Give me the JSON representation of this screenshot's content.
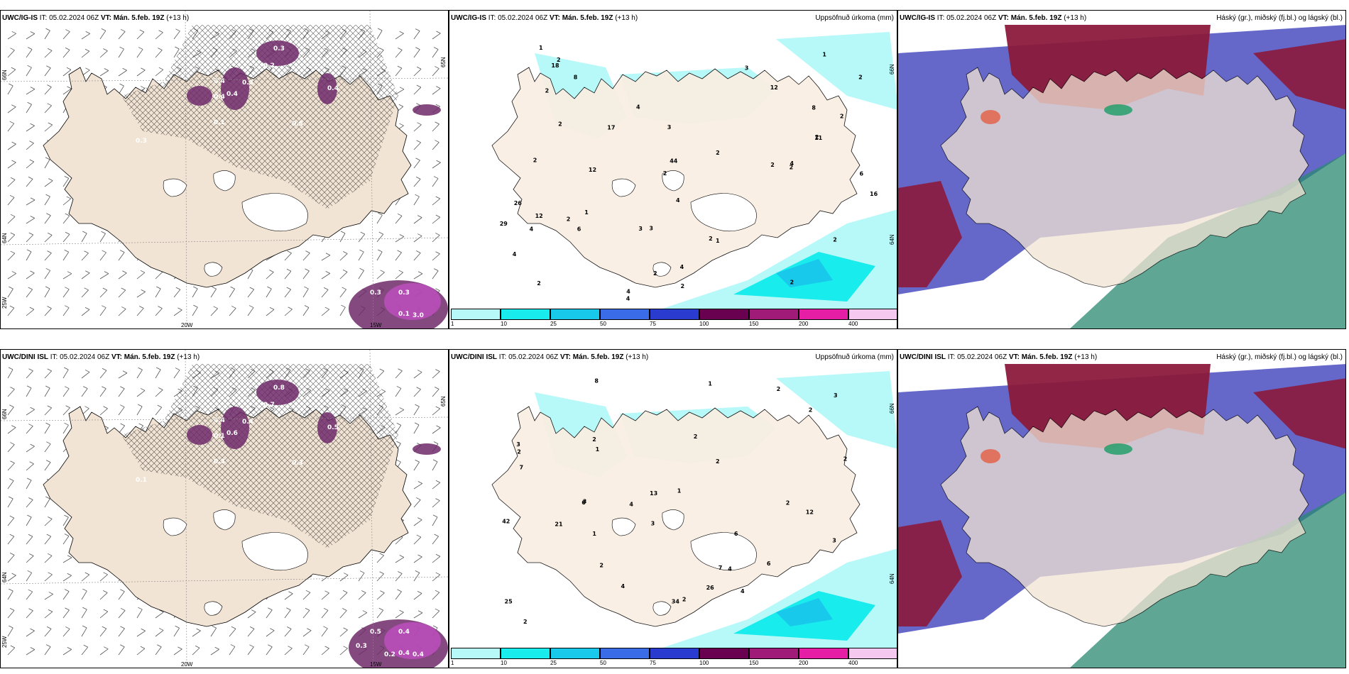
{
  "panels": [
    {
      "id": "p1",
      "model": "UWC/IG-IS",
      "it_label": "IT:",
      "it_value": "05.02.2024 06Z",
      "vt_label": "VT:",
      "vt_value": "Mán. 5.feb. 19Z",
      "lead": "(+13 h)",
      "right_title": "",
      "kind": "wind-precip",
      "lat_labels": [
        "66N",
        "64N",
        "25W"
      ],
      "lon_labels": [
        "20W",
        "15W",
        "65N"
      ],
      "values": [
        "0.3",
        "0.2",
        "0.4",
        "0.3",
        "0.4",
        "0.5",
        "0.4",
        "0.1",
        "0.3",
        "0.3",
        "0.4",
        "0.1",
        "0.3",
        "3.0"
      ]
    },
    {
      "id": "p2",
      "model": "UWC/IG-IS",
      "it_label": "IT:",
      "it_value": "05.02.2024 06Z",
      "vt_label": "VT:",
      "vt_value": "Mán. 5.feb. 19Z",
      "lead": "(+13 h)",
      "right_title": "Uppsöfnuð úrkoma (mm)",
      "kind": "precip",
      "lat_labels": [
        "66N",
        "64N"
      ],
      "values": [
        "2",
        "2",
        "4",
        "4",
        "4",
        "4",
        "2",
        "2",
        "3",
        "6",
        "6",
        "8",
        "4",
        "2",
        "2",
        "2",
        "1",
        "3",
        "2",
        "2",
        "2",
        "2",
        "1",
        "2",
        "3",
        "2",
        "2",
        "2",
        "1",
        "8",
        "2",
        "2",
        "4",
        "12",
        "12",
        "17",
        "18",
        "26",
        "29",
        "44",
        "3",
        "11",
        "16",
        "12",
        "4",
        "4",
        "2",
        "1"
      ],
      "colorbar": {
        "labels": [
          "1",
          "10",
          "25",
          "50",
          "75",
          "100",
          "150",
          "200",
          "400"
        ],
        "colors": [
          "#b7f8f8",
          "#18ecec",
          "#18c9ec",
          "#3a6ce8",
          "#2a3cd0",
          "#6a0050",
          "#a01a78",
          "#e61ea6",
          "#f5c8f0"
        ]
      }
    },
    {
      "id": "p3",
      "model": "UWC/IG-IS",
      "it_label": "IT:",
      "it_value": "05.02.2024 06Z",
      "vt_label": "VT:",
      "vt_value": "Mán. 5.feb. 19Z",
      "lead": "(+13 h)",
      "right_title": "Háský (gr.), miðský (fj.bl.) og lágský (bl.)",
      "kind": "clouds"
    },
    {
      "id": "p4",
      "model": "UWC/DINI ISL",
      "it_label": "IT:",
      "it_value": "05.02.2024 06Z",
      "vt_label": "VT:",
      "vt_value": "Mán. 5.feb. 19Z",
      "lead": "(+13 h)",
      "right_title": "",
      "kind": "wind-precip",
      "lat_labels": [
        "66N",
        "64N",
        "25W"
      ],
      "lon_labels": [
        "20W",
        "15W",
        "65N"
      ],
      "values": [
        "0.8",
        "0.7",
        "0.4",
        "0.4",
        "0.6",
        "0.3",
        "0.5",
        "0.4",
        "0.5",
        "0.4",
        "0.1",
        "0.3",
        "0.1",
        "0.4",
        "0.2",
        "0.3"
      ]
    },
    {
      "id": "p5",
      "model": "UWC/DINI ISL",
      "it_label": "IT:",
      "it_value": "05.02.2024 06Z",
      "vt_label": "VT:",
      "vt_value": "Mán. 5.feb. 19Z",
      "lead": "(+13 h)",
      "right_title": "Uppsöfnuð úrkoma (mm)",
      "kind": "precip",
      "lat_labels": [
        "66N",
        "64N"
      ],
      "values": [
        "1",
        "1",
        "4",
        "7",
        "4",
        "6",
        "2",
        "3",
        "6",
        "4",
        "3",
        "3",
        "2",
        "2",
        "2",
        "2",
        "2",
        "2",
        "2",
        "1",
        "2",
        "3",
        "2",
        "4",
        "7",
        "26",
        "25",
        "34",
        "42",
        "21",
        "13",
        "12",
        "3",
        "6",
        "8",
        "2",
        "1"
      ],
      "colorbar": {
        "labels": [
          "1",
          "10",
          "25",
          "50",
          "75",
          "100",
          "150",
          "200",
          "400"
        ],
        "colors": [
          "#b7f8f8",
          "#18ecec",
          "#18c9ec",
          "#3a6ce8",
          "#2a3cd0",
          "#6a0050",
          "#a01a78",
          "#e61ea6",
          "#f5c8f0"
        ]
      }
    },
    {
      "id": "p6",
      "model": "UWC/DINI ISL",
      "it_label": "IT:",
      "it_value": "05.02.2024 06Z",
      "vt_label": "VT:",
      "vt_value": "Mán. 5.feb. 19Z",
      "lead": "(+13 h)",
      "right_title": "Háský (gr.), miðský (fj.bl.) og lágský (bl.)",
      "kind": "clouds"
    }
  ],
  "colors": {
    "land": "#f2e4d4",
    "land_precip": "#faeee2",
    "ice": "#ffffff",
    "precip_light": "#b7f8f8",
    "precip_mid": "#18ecec",
    "precip_dark": "#18c9ec",
    "snow_purple": "#6e2a6a",
    "snow_magenta": "#c04ec0",
    "cloud_high": "#8b1a3c",
    "cloud_mid": "#4a4ec0",
    "cloud_low": "#2a8a70"
  }
}
